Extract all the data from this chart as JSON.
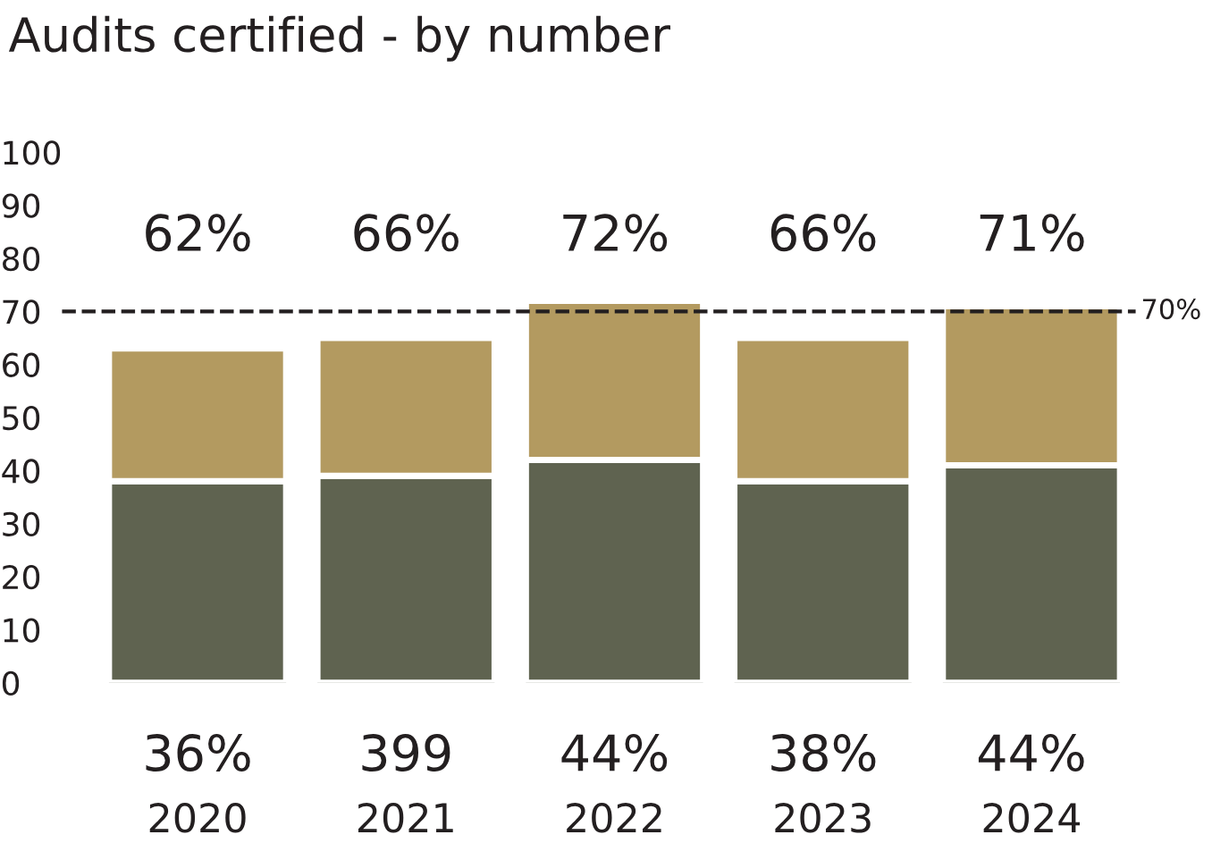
{
  "chart_data": {
    "type": "bar",
    "title": "Audits certified - by number",
    "stacked": true,
    "categories": [
      "2020",
      "2021",
      "2022",
      "2023",
      "2024"
    ],
    "series": [
      {
        "color": "#5f6350",
        "values": [
          38,
          39,
          42,
          38,
          41
        ]
      },
      {
        "color": "#b39a60",
        "values": [
          25,
          26,
          30,
          27,
          30
        ]
      }
    ],
    "totals": [
      "62%",
      "66%",
      "72%",
      "66%",
      "71%"
    ],
    "annotations": [
      "36%",
      "399",
      "44%",
      "38%",
      "44%"
    ],
    "ylim": [
      0,
      100
    ],
    "yticks": [
      0,
      10,
      20,
      30,
      40,
      50,
      60,
      70,
      80,
      90,
      100
    ],
    "grid": false,
    "legend": false,
    "ref_lines": [
      {
        "axis": "y",
        "value": 70,
        "label": "70%",
        "color": "#231f20",
        "line_style": "dashed"
      }
    ]
  }
}
